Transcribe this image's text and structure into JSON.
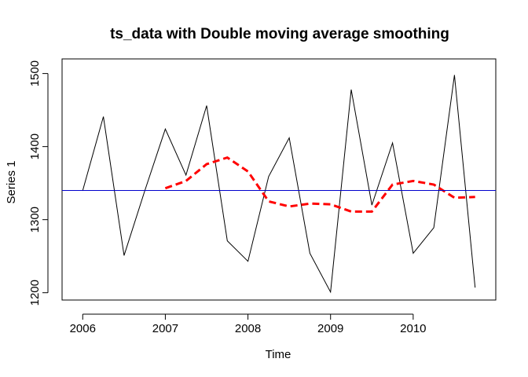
{
  "chart_data": {
    "type": "line",
    "title": "ts_data with Double moving average smoothing",
    "xlabel": "Time",
    "ylabel": "Series 1",
    "xlim": [
      2005.75,
      2011.0
    ],
    "ylim": [
      1190,
      1520
    ],
    "x_ticks": [
      2006,
      2007,
      2008,
      2009,
      2010
    ],
    "y_ticks": [
      1200,
      1300,
      1400,
      1500
    ],
    "grid": false,
    "legend": "none",
    "series": [
      {
        "style": "solid",
        "color": "#000000",
        "x": [
          2006.0,
          2006.25,
          2006.5,
          2006.75,
          2007.0,
          2007.25,
          2007.5,
          2007.75,
          2008.0,
          2008.25,
          2008.5,
          2008.75,
          2009.0,
          2009.25,
          2009.5,
          2009.75,
          2010.0,
          2010.25,
          2010.5,
          2010.75
        ],
        "values": [
          1340,
          1441,
          1251,
          1339,
          1424,
          1361,
          1456,
          1271,
          1243,
          1359,
          1412,
          1254,
          1201,
          1478,
          1320,
          1405,
          1254,
          1289,
          1498,
          1207
        ]
      },
      {
        "style": "dashed",
        "color": "#ff0000",
        "x": [
          2007.0,
          2007.25,
          2007.5,
          2007.75,
          2008.0,
          2008.25,
          2008.5,
          2008.75,
          2009.0,
          2009.25,
          2009.5,
          2009.75,
          2010.0,
          2010.25,
          2010.5,
          2010.75
        ],
        "values": [
          1343,
          1353,
          1376,
          1385,
          1366,
          1325,
          1318,
          1322,
          1321,
          1311,
          1311,
          1348,
          1353,
          1348,
          1330,
          1331
        ]
      },
      {
        "style": "hline",
        "color": "#0000cc",
        "values": [
          1340
        ]
      }
    ]
  }
}
